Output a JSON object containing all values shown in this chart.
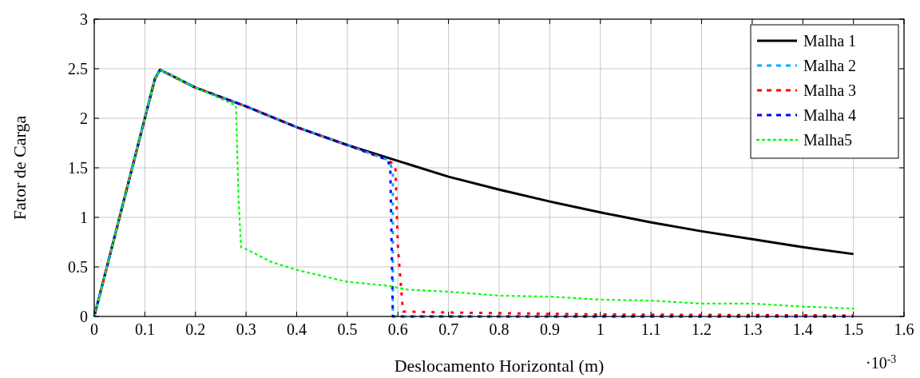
{
  "chart_data": {
    "type": "line",
    "xlabel": "Deslocamento Horizontal (m)",
    "ylabel": "Fator de Carga",
    "annotations": [
      "·10$^{-3}$"
    ],
    "xlim": [
      0,
      1.6
    ],
    "ylim": [
      0,
      3
    ],
    "xticks": [
      0,
      0.1,
      0.2,
      0.3,
      0.4,
      0.5,
      0.6,
      0.7,
      0.8,
      0.9,
      1,
      1.1,
      1.2,
      1.3,
      1.4,
      1.5,
      1.6
    ],
    "yticks": [
      0,
      0.5,
      1,
      1.5,
      2,
      2.5,
      3
    ],
    "grid": true,
    "legend": "top right",
    "marker": "none",
    "series": [
      {
        "name": "Malha 1",
        "color": "#000000",
        "line_style": "solid",
        "x": [
          0,
          0.12,
          0.13,
          0.2,
          0.3,
          0.4,
          0.5,
          0.6,
          0.7,
          0.8,
          0.9,
          1,
          1.1,
          1.2,
          1.3,
          1.4,
          1.5
        ],
        "values": [
          0,
          2.4,
          2.49,
          2.31,
          2.12,
          1.91,
          1.73,
          1.57,
          1.41,
          1.28,
          1.16,
          1.05,
          0.95,
          0.86,
          0.78,
          0.7,
          0.63
        ]
      },
      {
        "name": "Malha 2",
        "color": "#00aaff",
        "line_style": "dashed",
        "x": [
          0,
          0.12,
          0.13,
          0.2,
          0.3,
          0.4,
          0.5,
          0.58,
          0.59,
          0.59,
          0.7,
          1,
          1.5
        ],
        "values": [
          0,
          2.4,
          2.49,
          2.31,
          2.12,
          1.91,
          1.73,
          1.58,
          1.48,
          0,
          0,
          0,
          0
        ]
      },
      {
        "name": "Malha 3",
        "color": "#ff0000",
        "line_style": "dashed",
        "x": [
          0,
          0.12,
          0.13,
          0.2,
          0.3,
          0.4,
          0.5,
          0.58,
          0.595,
          0.6,
          0.61,
          0.7,
          1,
          1.5
        ],
        "values": [
          0,
          2.4,
          2.49,
          2.31,
          2.12,
          1.91,
          1.73,
          1.58,
          1.52,
          0.7,
          0.05,
          0.04,
          0.02,
          0.01
        ]
      },
      {
        "name": "Malha 4",
        "color": "#0000ff",
        "line_style": "dashed",
        "x": [
          0,
          0.12,
          0.13,
          0.2,
          0.3,
          0.4,
          0.5,
          0.58,
          0.585,
          0.59,
          0.6,
          1,
          1.5
        ],
        "values": [
          0,
          2.4,
          2.49,
          2.31,
          2.12,
          1.91,
          1.73,
          1.58,
          1.5,
          0,
          0,
          0,
          0
        ]
      },
      {
        "name": "Malha5",
        "color": "#00ff00",
        "line_style": "dotted",
        "x": [
          0,
          0.12,
          0.13,
          0.2,
          0.28,
          0.285,
          0.29,
          0.3,
          0.35,
          0.4,
          0.5,
          0.58,
          0.62,
          0.7,
          0.8,
          0.9,
          1,
          1.1,
          1.2,
          1.3,
          1.4,
          1.5
        ],
        "values": [
          0,
          2.4,
          2.49,
          2.31,
          2.13,
          1.2,
          0.7,
          0.68,
          0.55,
          0.47,
          0.35,
          0.31,
          0.27,
          0.25,
          0.21,
          0.2,
          0.17,
          0.16,
          0.13,
          0.13,
          0.1,
          0.08
        ]
      }
    ]
  }
}
